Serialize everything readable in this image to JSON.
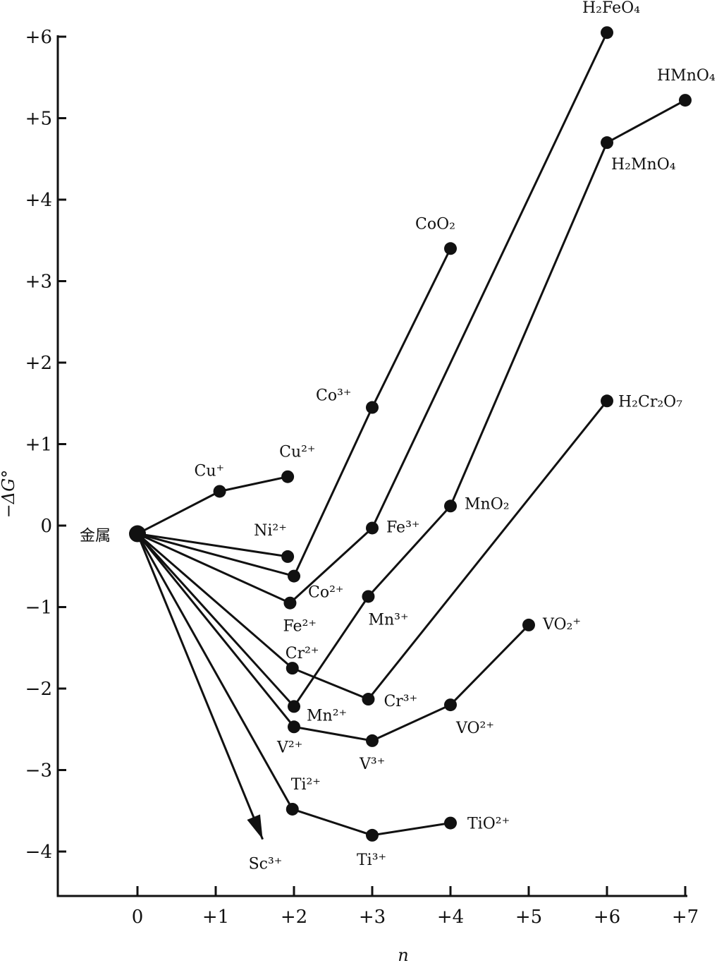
{
  "chart_data": {
    "type": "line",
    "ylabel": "−ΔG°",
    "xlabel": "n",
    "xlim": [
      -1,
      7
    ],
    "ylim": [
      -4.5,
      6.2
    ],
    "x_ticks": [
      {
        "value": 0,
        "label": "0"
      },
      {
        "value": 1,
        "label": "+1"
      },
      {
        "value": 2,
        "label": "+2"
      },
      {
        "value": 3,
        "label": "+3"
      },
      {
        "value": 4,
        "label": "+4"
      },
      {
        "value": 5,
        "label": "+5"
      },
      {
        "value": 6,
        "label": "+6"
      },
      {
        "value": 7,
        "label": "+7"
      }
    ],
    "y_ticks": [
      {
        "value": 6,
        "label": "+6"
      },
      {
        "value": 5,
        "label": "+5"
      },
      {
        "value": 4,
        "label": "+4"
      },
      {
        "value": 3,
        "label": "+3"
      },
      {
        "value": 2,
        "label": "+2"
      },
      {
        "value": 1,
        "label": "+1"
      },
      {
        "value": 0,
        "label": "0"
      },
      {
        "value": -1,
        "label": "−1"
      },
      {
        "value": -2,
        "label": "−2"
      },
      {
        "value": -3,
        "label": "−3"
      },
      {
        "value": -4,
        "label": "−4"
      }
    ],
    "origin": {
      "x": 0,
      "y": -0.1,
      "label": "金属"
    },
    "series": [
      {
        "points": [
          {
            "x": 1.05,
            "y": 0.42,
            "label": "Cu⁺"
          },
          {
            "x": 1.92,
            "y": 0.6,
            "label": "Cu²⁺"
          }
        ]
      },
      {
        "points": [
          {
            "x": 1.92,
            "y": -0.38,
            "label": "Ni²⁺"
          }
        ]
      },
      {
        "points": [
          {
            "x": 2.0,
            "y": -0.62,
            "label": "Co²⁺"
          },
          {
            "x": 3.0,
            "y": 1.45,
            "label": "Co³⁺"
          },
          {
            "x": 4.0,
            "y": 3.4,
            "label": "CoO₂"
          }
        ]
      },
      {
        "points": [
          {
            "x": 1.95,
            "y": -0.95,
            "label": "Fe²⁺"
          },
          {
            "x": 3.0,
            "y": -0.03,
            "label": "Fe³⁺"
          },
          {
            "x": 6.0,
            "y": 6.05,
            "label": "H₂FeO₄"
          }
        ]
      },
      {
        "points": [
          {
            "x": 2.0,
            "y": -2.22,
            "label": "Mn²⁺"
          },
          {
            "x": 2.95,
            "y": -0.87,
            "label": "Mn³⁺"
          },
          {
            "x": 4.0,
            "y": 0.24,
            "label": "MnO₂"
          },
          {
            "x": 6.0,
            "y": 4.7,
            "label": "H₂MnO₄"
          },
          {
            "x": 7.0,
            "y": 5.22,
            "label": "HMnO₄"
          }
        ]
      },
      {
        "points": [
          {
            "x": 1.98,
            "y": -1.75,
            "label": "Cr²⁺"
          },
          {
            "x": 2.95,
            "y": -2.13,
            "label": "Cr³⁺"
          },
          {
            "x": 6.0,
            "y": 1.53,
            "label": "H₂Cr₂O₇"
          }
        ]
      },
      {
        "points": [
          {
            "x": 2.0,
            "y": -2.47,
            "label": "V²⁺"
          },
          {
            "x": 3.0,
            "y": -2.64,
            "label": "V³⁺"
          },
          {
            "x": 4.0,
            "y": -2.2,
            "label": "VO²⁺"
          },
          {
            "x": 5.0,
            "y": -1.22,
            "label": "VO₂⁺"
          }
        ]
      },
      {
        "points": [
          {
            "x": 1.98,
            "y": -3.48,
            "label": "Ti²⁺"
          },
          {
            "x": 3.0,
            "y": -3.8,
            "label": "Ti³⁺"
          },
          {
            "x": 4.0,
            "y": -3.65,
            "label": "TiO²⁺"
          }
        ]
      }
    ],
    "arrow": {
      "to": {
        "x": 1.6,
        "y": -3.85
      },
      "label": "Sc³⁺"
    }
  }
}
